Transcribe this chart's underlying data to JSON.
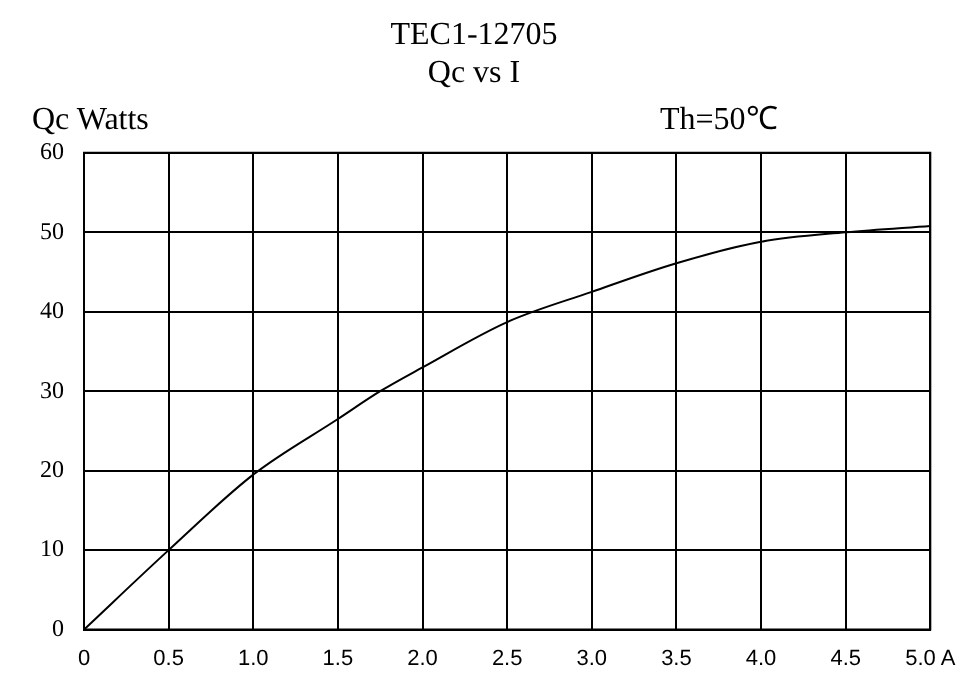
{
  "chart_data": {
    "type": "line",
    "title": "TEC1-12705",
    "subtitle": "Qc vs I",
    "ylabel": "Qc Watts",
    "annotations": [
      "Th=50℃"
    ],
    "x": [
      0,
      0.5,
      1.0,
      1.5,
      1.75,
      2.0,
      2.5,
      3.0,
      3.5,
      4.0,
      4.5,
      5.0
    ],
    "series": [
      {
        "color": "#000000",
        "values": [
          0,
          10,
          19.5,
          26.5,
          30,
          33,
          38.7,
          42.5,
          46.1,
          48.8,
          50,
          50.8
        ]
      }
    ],
    "xlim": [
      0,
      5
    ],
    "xticks": [
      0,
      0.5,
      {
        "value": 1,
        "label": "1.0"
      },
      1.5,
      {
        "value": 2,
        "label": "2.0"
      },
      2.5,
      {
        "value": 3,
        "label": "3.0"
      },
      3.5,
      {
        "value": 4,
        "label": "4.0"
      },
      4.5,
      {
        "value": 5,
        "label": "5.0 A"
      }
    ],
    "ylim": [
      0,
      60
    ],
    "yticks": [
      0,
      10,
      20,
      30,
      40,
      50,
      60
    ],
    "grid": true,
    "legend": false,
    "marker": "none",
    "line_style": "solid"
  }
}
